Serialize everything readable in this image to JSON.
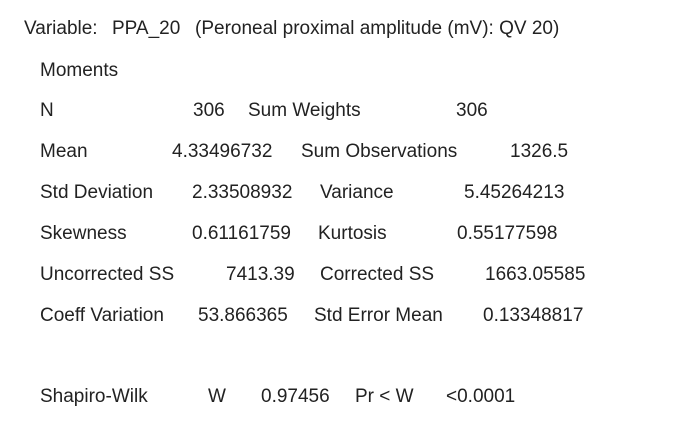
{
  "header": {
    "variable_label": "Variable:",
    "variable_name": "PPA_20",
    "variable_desc": "(Peroneal proximal amplitude (mV): QV 20)"
  },
  "section_title": "Moments",
  "moments": [
    {
      "label1": "N",
      "value1": "306",
      "label2": "Sum Weights",
      "value2": "306"
    },
    {
      "label1": "Mean",
      "value1": "4.33496732",
      "label2": "Sum Observations",
      "value2": "1326.5"
    },
    {
      "label1": "Std Deviation",
      "value1": "2.33508932",
      "label2": "Variance",
      "value2": "5.45264213"
    },
    {
      "label1": "Skewness",
      "value1": "0.61161759",
      "label2": "Kurtosis",
      "value2": "0.55177598"
    },
    {
      "label1": "Uncorrected SS",
      "value1": "7413.39",
      "label2": "Corrected SS",
      "value2": "1663.05585"
    },
    {
      "label1": "Coeff Variation",
      "value1": "53.866365",
      "label2": "Std Error Mean",
      "value2": "0.13348817"
    }
  ],
  "normality": {
    "test": "Shapiro-Wilk",
    "stat_label": "W",
    "stat_value": "0.97456",
    "p_label": "Pr < W",
    "p_value": "<0.0001"
  }
}
